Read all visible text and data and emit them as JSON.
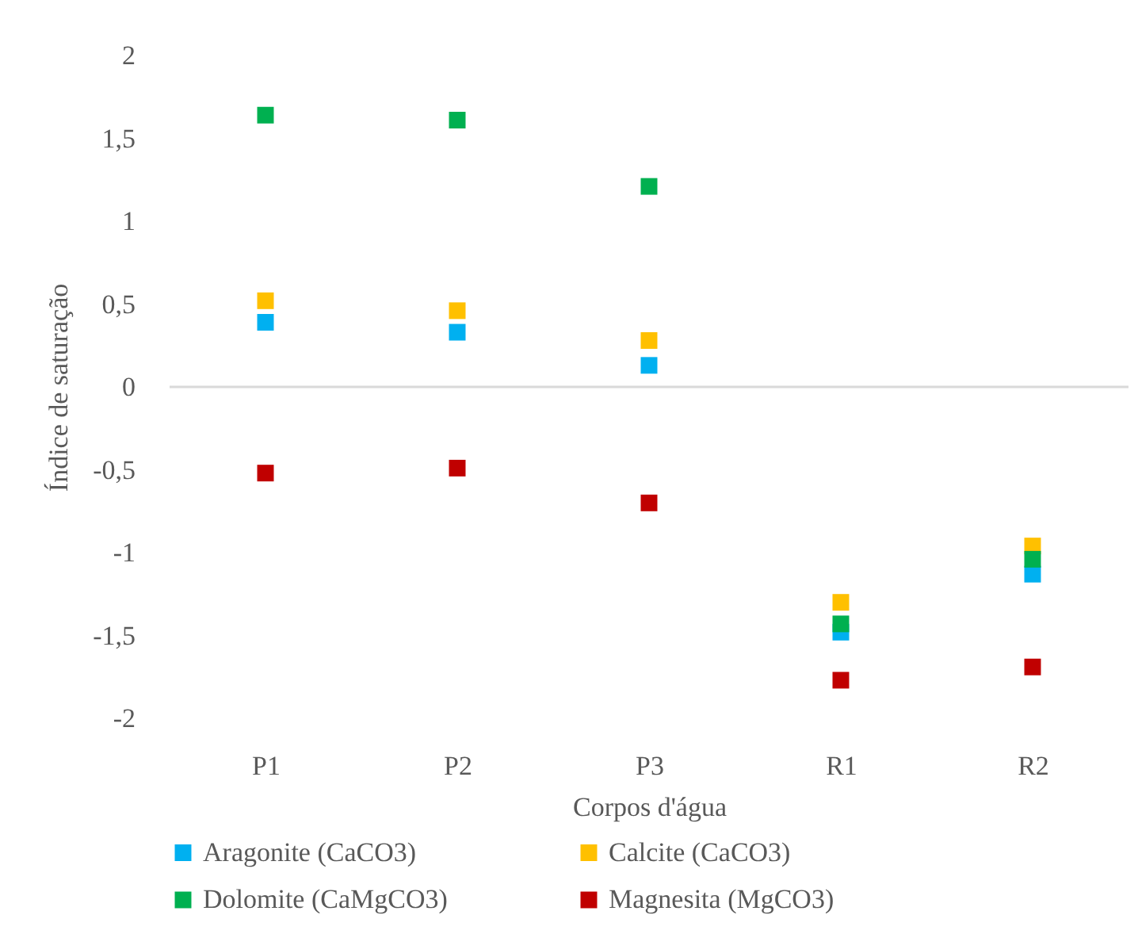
{
  "chart_data": {
    "type": "scatter",
    "xlabel": "Corpos d'água",
    "ylabel": "Índice de saturação",
    "categories": [
      "P1",
      "P2",
      "P3",
      "R1",
      "R2"
    ],
    "series": [
      {
        "name": "Aragonite (CaCO3)",
        "color": "#00b0f0",
        "values": [
          0.39,
          0.33,
          0.13,
          -1.48,
          -1.13
        ]
      },
      {
        "name": "Calcite (CaCO3)",
        "color": "#ffc000",
        "values": [
          0.52,
          0.46,
          0.28,
          -1.3,
          -0.96
        ]
      },
      {
        "name": "Dolomite (CaMgCO3)",
        "color": "#00b050",
        "values": [
          1.64,
          1.61,
          1.21,
          -1.43,
          -1.04
        ]
      },
      {
        "name": "Magnesita (MgCO3)",
        "color": "#c00000",
        "values": [
          -0.52,
          -0.49,
          -0.7,
          -1.77,
          -1.69
        ]
      }
    ],
    "ylim": [
      -2,
      2
    ],
    "yticks": [
      {
        "value": -2,
        "label": "-2"
      },
      {
        "value": -1.5,
        "label": "-1,5"
      },
      {
        "value": -1,
        "label": "-1"
      },
      {
        "value": -0.5,
        "label": "-0,5"
      },
      {
        "value": 0,
        "label": "0"
      },
      {
        "value": 0.5,
        "label": "0,5"
      },
      {
        "value": 1,
        "label": "1"
      },
      {
        "value": 1.5,
        "label": "1,5"
      },
      {
        "value": 2,
        "label": "2"
      }
    ],
    "ref_lines": [
      {
        "axis": "y",
        "value": 0,
        "color": "#d9d9d9"
      }
    ],
    "grid": false,
    "legend": "bottom",
    "marker": "square"
  }
}
